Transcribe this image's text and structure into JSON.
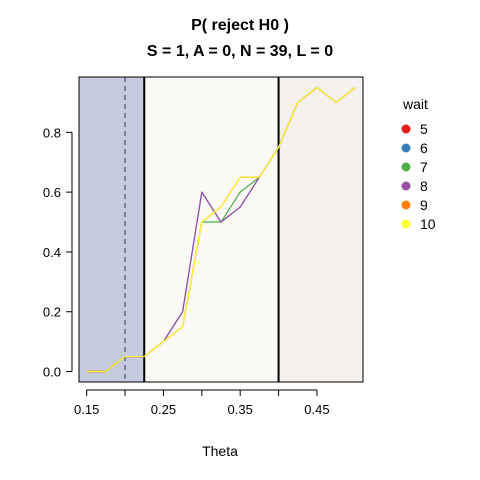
{
  "chart_data": {
    "type": "line",
    "title": "P( reject H0 )",
    "subtitle": "S = 1, A = 0, N = 39, L = 0",
    "xlabel": "Theta",
    "ylabel": "",
    "xlim": [
      0.15,
      0.5
    ],
    "ylim": [
      0.0,
      0.95
    ],
    "xticks": [
      0.15,
      0.25,
      0.35,
      0.45
    ],
    "xtick_labels": [
      "0.15",
      "0.25",
      "0.35",
      "0.45"
    ],
    "yticks": [
      0.0,
      0.2,
      0.4,
      0.6,
      0.8
    ],
    "ytick_labels": [
      "0.0",
      "0.2",
      "0.4",
      "0.6",
      "0.8"
    ],
    "grid": false,
    "legend": {
      "title": "wait",
      "placement": "right"
    },
    "regions": [
      {
        "from": 0.15,
        "to": 0.225,
        "color": "#c6cbe0"
      },
      {
        "from": 0.225,
        "to": 0.4,
        "color": "#fbfaf6"
      },
      {
        "from": 0.4,
        "to": 0.5,
        "color": "#f5f1ee"
      }
    ],
    "vlines": [
      {
        "x": 0.2,
        "style": "dashed",
        "color": "#4a4f6e"
      },
      {
        "x": 0.225,
        "style": "solid",
        "color": "#000000"
      },
      {
        "x": 0.4,
        "style": "solid",
        "color": "#000000"
      }
    ],
    "x": [
      0.15,
      0.175,
      0.2,
      0.225,
      0.25,
      0.275,
      0.3,
      0.325,
      0.35,
      0.375,
      0.4,
      0.425,
      0.45,
      0.475,
      0.5
    ],
    "series": [
      {
        "name": "5",
        "color": "#e41a1c",
        "values": [
          0.0,
          0.0,
          0.05,
          0.05,
          0.1,
          0.15,
          0.5,
          0.55,
          0.65,
          0.65,
          0.75,
          0.9,
          0.95,
          0.9,
          0.95
        ]
      },
      {
        "name": "6",
        "color": "#377eb8",
        "values": [
          0.0,
          0.0,
          0.05,
          0.05,
          0.1,
          0.2,
          0.6,
          0.5,
          0.55,
          0.65,
          0.75,
          0.9,
          0.95,
          0.9,
          0.95
        ]
      },
      {
        "name": "7",
        "color": "#4daf4a",
        "values": [
          0.0,
          0.0,
          0.05,
          0.05,
          0.1,
          0.15,
          0.5,
          0.5,
          0.6,
          0.65,
          0.75,
          0.9,
          0.95,
          0.9,
          0.95
        ]
      },
      {
        "name": "8",
        "color": "#984ea3",
        "values": [
          0.0,
          0.0,
          0.05,
          0.05,
          0.1,
          0.2,
          0.6,
          0.5,
          0.55,
          0.65,
          0.75,
          0.9,
          0.95,
          0.9,
          0.95
        ]
      },
      {
        "name": "9",
        "color": "#ff7f00",
        "values": [
          0.0,
          0.0,
          0.05,
          0.05,
          0.1,
          0.15,
          0.5,
          0.55,
          0.65,
          0.65,
          0.75,
          0.9,
          0.95,
          0.9,
          0.95
        ]
      },
      {
        "name": "10",
        "color": "#ffff33",
        "values": [
          0.0,
          0.0,
          0.05,
          0.05,
          0.1,
          0.15,
          0.5,
          0.55,
          0.65,
          0.65,
          0.75,
          0.9,
          0.95,
          0.9,
          0.95
        ]
      }
    ]
  }
}
